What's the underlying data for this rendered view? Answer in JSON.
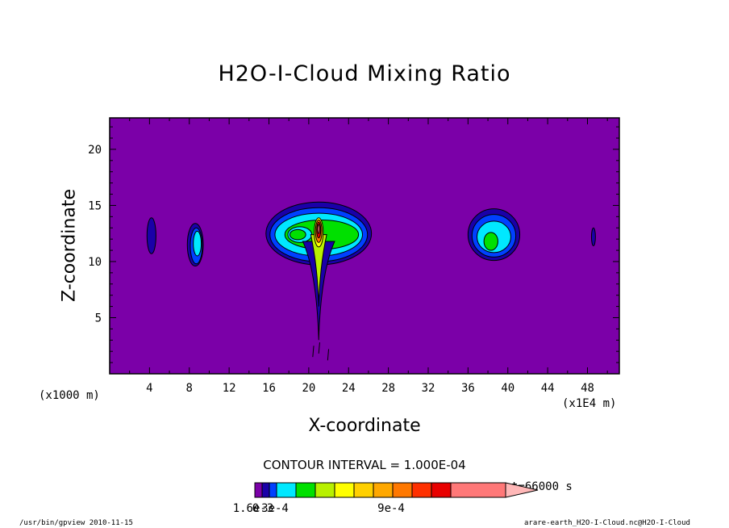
{
  "chart_data": {
    "type": "contour",
    "title": "H2O-I-Cloud Mixing Ratio",
    "xlabel": "X-coordinate",
    "ylabel": "Z-coordinate",
    "x_unit_label": "(x1000 m)",
    "x_scale_label": "(x1E4 m)",
    "xlim": [
      0,
      51.2
    ],
    "ylim": [
      0,
      22.8
    ],
    "x_ticks": [
      "4",
      "8",
      "12",
      "16",
      "20",
      "24",
      "28",
      "32",
      "36",
      "40",
      "44",
      "48"
    ],
    "x_tick_values": [
      4,
      8,
      12,
      16,
      20,
      24,
      28,
      32,
      36,
      40,
      44,
      48
    ],
    "y_ticks": [
      "5",
      "10",
      "15",
      "20"
    ],
    "y_tick_values": [
      5,
      10,
      15,
      20
    ],
    "contour_interval_label": "CONTOUR INTERVAL = 1.000E-04",
    "time_label": "t=66000 s",
    "colorbar": {
      "labels": [
        "0",
        "3e-4",
        "9e-4",
        "1.6e-3"
      ],
      "label_values": [
        0,
        0.0003,
        0.0009,
        0.0016
      ],
      "levels": [
        0,
        0.0001,
        0.0002,
        0.0003,
        0.0004,
        0.0005,
        0.0006,
        0.0007,
        0.0008,
        0.0009,
        0.001,
        0.0011,
        0.0012,
        0.0013,
        0.0016
      ],
      "colors": [
        "#7b00a8",
        "#1a00a8",
        "#0040ff",
        "#00e8ff",
        "#00e000",
        "#b8f000",
        "#ffff00",
        "#ffd000",
        "#ffa800",
        "#ff7800",
        "#ff3000",
        "#e80000",
        "#ff7878",
        "#ffb8b8"
      ]
    },
    "background_color": "#7b00a8",
    "features": [
      {
        "name": "cloud-small-left",
        "x": 4.2,
        "z": 12.3,
        "peak": 0.00015
      },
      {
        "name": "cloud-left",
        "x": 8.6,
        "z": 11.5,
        "peak": 0.00035
      },
      {
        "name": "cloud-main",
        "x": 21.0,
        "z": 12.4,
        "peak": 0.0016
      },
      {
        "name": "cloud-right",
        "x": 38.6,
        "z": 12.2,
        "peak": 0.00045
      },
      {
        "name": "cloud-small-right",
        "x": 48.6,
        "z": 12.2,
        "peak": 0.00012
      }
    ]
  },
  "footer": {
    "left": "/usr/bin/gpview  2010-11-15",
    "right": "arare-earth_H2O-I-Cloud.nc@H2O-I-Cloud"
  }
}
